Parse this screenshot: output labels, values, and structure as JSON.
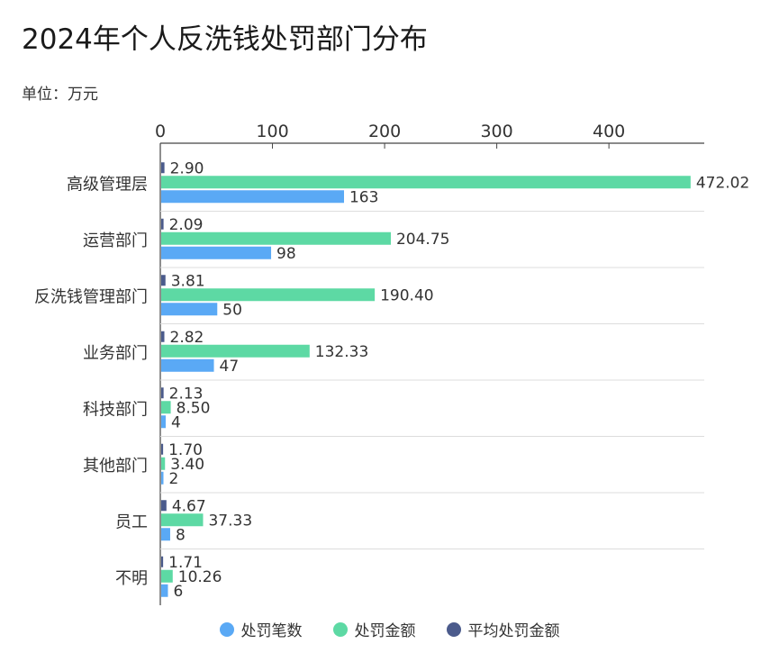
{
  "header": {
    "title": "2024年个人反洗钱处罚部门分布",
    "unit": "单位：万元"
  },
  "colors": {
    "count": "#5AA9F5",
    "amount": "#5DD9A4",
    "average": "#4B5B8C"
  },
  "chart_data": {
    "type": "bar",
    "orientation": "horizontal",
    "title": "2024年个人反洗钱处罚部门分布",
    "subtitle": "单位：万元",
    "categories": [
      "高级管理层",
      "运营部门",
      "反洗钱管理部门",
      "业务部门",
      "科技部门",
      "其他部门",
      "员工",
      "不明"
    ],
    "series": [
      {
        "name": "平均处罚金额",
        "values": [
          2.9,
          2.09,
          3.81,
          2.82,
          2.13,
          1.7,
          4.67,
          1.71
        ],
        "labels": [
          "2.90",
          "2.09",
          "3.81",
          "2.82",
          "2.13",
          "1.70",
          "4.67",
          "1.71"
        ]
      },
      {
        "name": "处罚金额",
        "values": [
          472.02,
          204.75,
          190.4,
          132.33,
          8.5,
          3.4,
          37.33,
          10.26
        ],
        "labels": [
          "472.02",
          "204.75",
          "190.40",
          "132.33",
          "8.50",
          "3.40",
          "37.33",
          "10.26"
        ]
      },
      {
        "name": "处罚笔数",
        "values": [
          163,
          98,
          50,
          47,
          4,
          2,
          8,
          6
        ],
        "labels": [
          "163",
          "98",
          "50",
          "47",
          "4",
          "2",
          "8",
          "6"
        ]
      }
    ],
    "xlim": [
      0,
      485
    ],
    "xticks": [
      "0",
      "100",
      "200",
      "300",
      "400"
    ],
    "xtick_values": [
      0,
      100,
      200,
      300,
      400
    ],
    "grid": true,
    "legend_position": "bottom",
    "legend": [
      "处罚笔数",
      "处罚金额",
      "平均处罚金额"
    ]
  }
}
